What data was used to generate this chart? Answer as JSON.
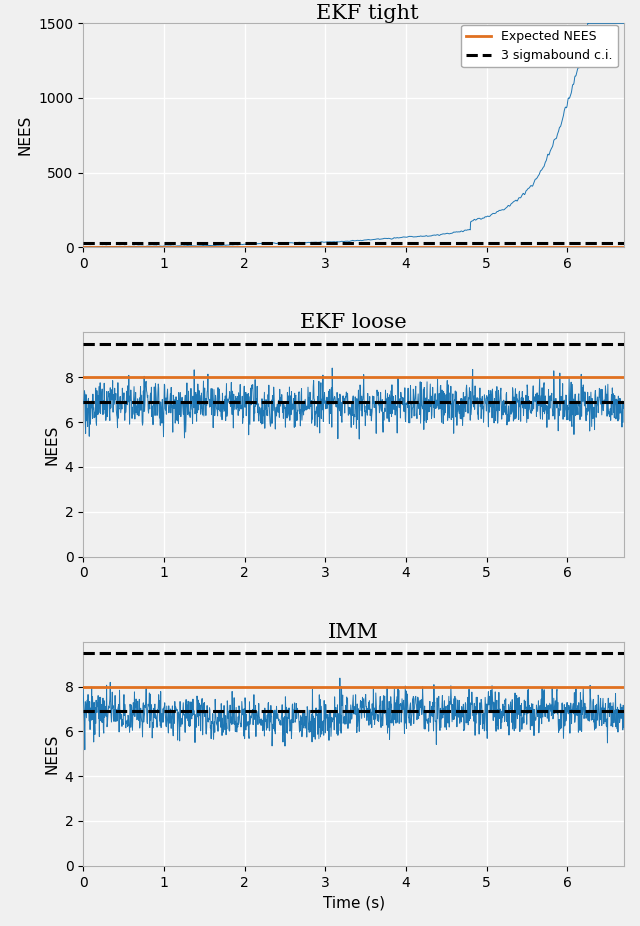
{
  "titles": [
    "EKF tight",
    "EKF loose",
    "IMM"
  ],
  "xlabel": "Time (s)",
  "ylabel": "NEES",
  "xlim": [
    0,
    6.7
  ],
  "panel1_ylim": [
    0,
    1500
  ],
  "panel1_yticks": [
    0,
    500,
    1000,
    1500
  ],
  "panel23_ylim": [
    0,
    10
  ],
  "panel23_yticks": [
    0,
    2,
    4,
    6,
    8
  ],
  "panel1_expected_nees": 5.0,
  "panel1_upper_ci": 28.0,
  "panel23_expected_nees": 8.0,
  "panel23_lower_ci": 6.9,
  "panel23_upper_ci": 9.5,
  "blue_color": "#1f77b4",
  "orange_color": "#e07020",
  "background_color": "#f0f0f0",
  "grid_color": "#ffffff",
  "legend_labels": [
    "Expected NEES",
    "3 sigmabound c.i."
  ],
  "title_fontsize": 15,
  "label_fontsize": 11,
  "tick_fontsize": 10,
  "line_lw": 0.7,
  "ref_lw": 2.0,
  "ci_lw": 2.2
}
